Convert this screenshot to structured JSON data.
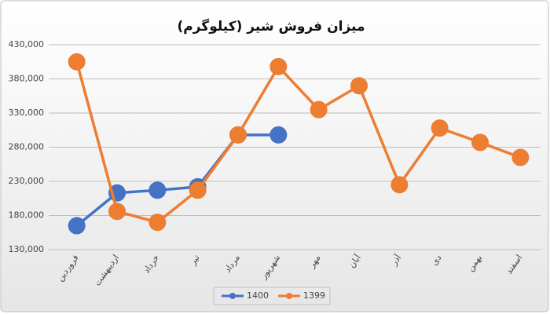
{
  "chart_data": {
    "type": "line",
    "title": "میزان فروش شیر (کیلوگرم)",
    "categories": [
      "فروردین",
      "اردیبهشت",
      "خرداد",
      "تیر",
      "مرداد",
      "شهریور",
      "مهر",
      "آبان",
      "آذر",
      "دی",
      "بهمن",
      "اسفند"
    ],
    "series": [
      {
        "name": "1400",
        "color": "#4472c4",
        "values": [
          165000,
          213000,
          217000,
          222000,
          298000,
          298000,
          null,
          null,
          null,
          null,
          null,
          null
        ]
      },
      {
        "name": "1399",
        "color": "#ed7d31",
        "values": [
          405000,
          186000,
          170000,
          217000,
          298000,
          398000,
          335000,
          370000,
          225000,
          308000,
          287000,
          265000
        ]
      }
    ],
    "ylim": [
      130000,
      430000
    ],
    "yticks": [
      {
        "value": 130000,
        "label": "130,000"
      },
      {
        "value": 180000,
        "label": "180,000"
      },
      {
        "value": 230000,
        "label": "230,000"
      },
      {
        "value": 280000,
        "label": "280,000"
      },
      {
        "value": 330000,
        "label": "330,000"
      },
      {
        "value": 380000,
        "label": "380,000"
      },
      {
        "value": 430000,
        "label": "430,000"
      }
    ],
    "grid": true,
    "legend": "bottom"
  }
}
